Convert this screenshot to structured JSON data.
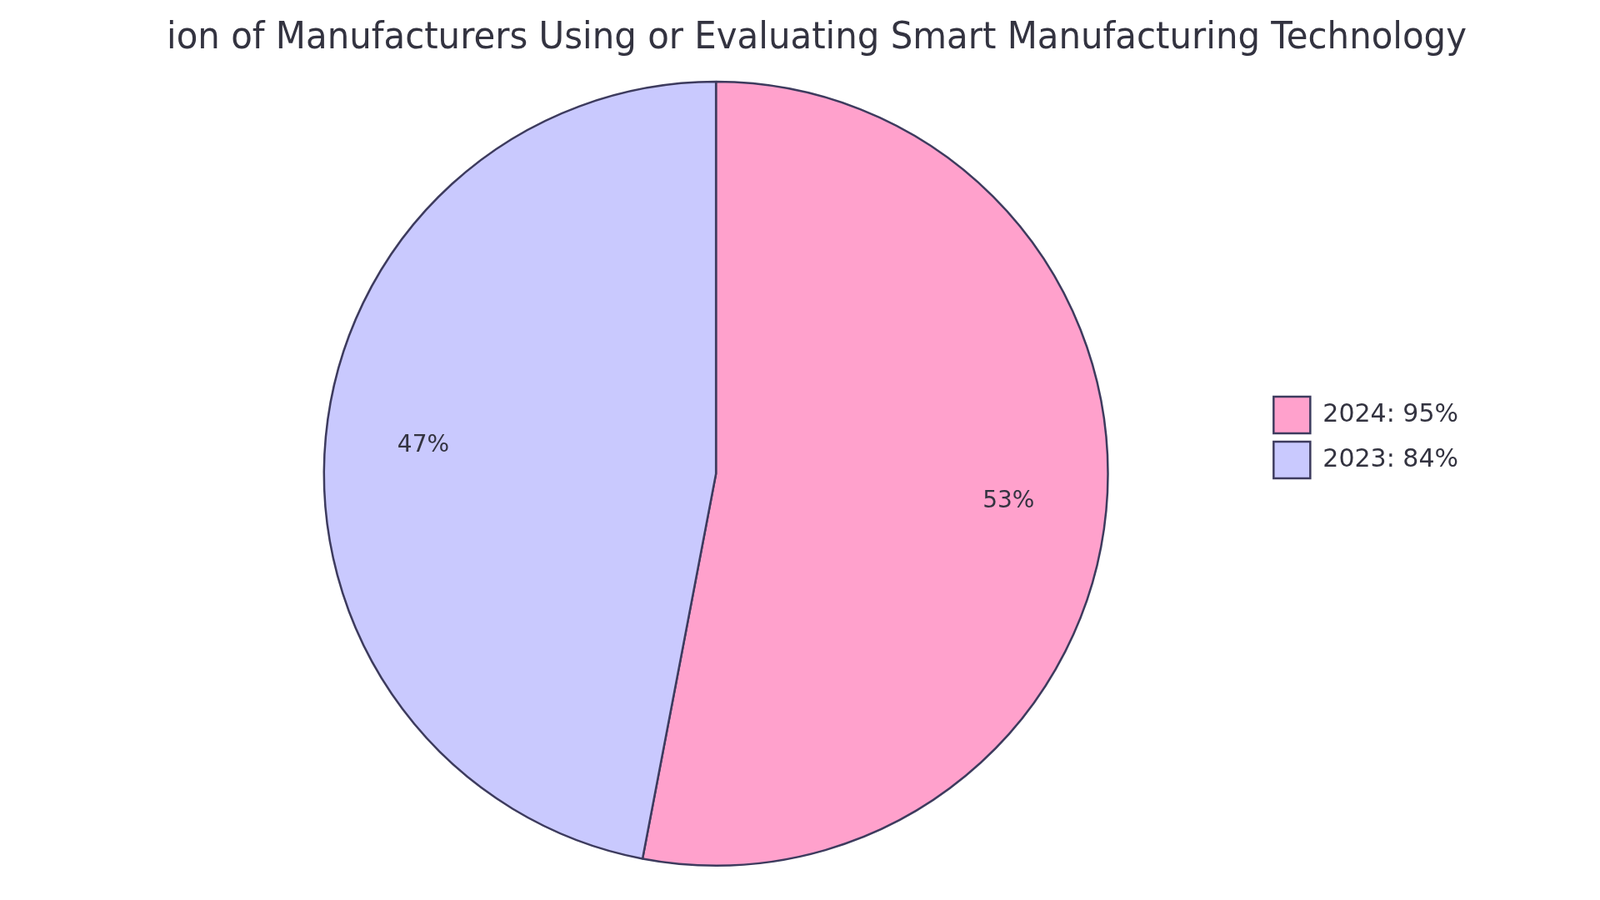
{
  "chart_data": {
    "type": "pie",
    "title": "ion of Manufacturers Using or Evaluating Smart Manufacturing Technology",
    "categories": [
      "2024: 95%",
      "2023: 84%"
    ],
    "values": [
      53,
      47
    ],
    "value_labels": [
      "53%",
      "47%"
    ],
    "colors": [
      "#ffa1cc",
      "#c9c9fe"
    ],
    "data_labels": true,
    "legend": "right"
  }
}
